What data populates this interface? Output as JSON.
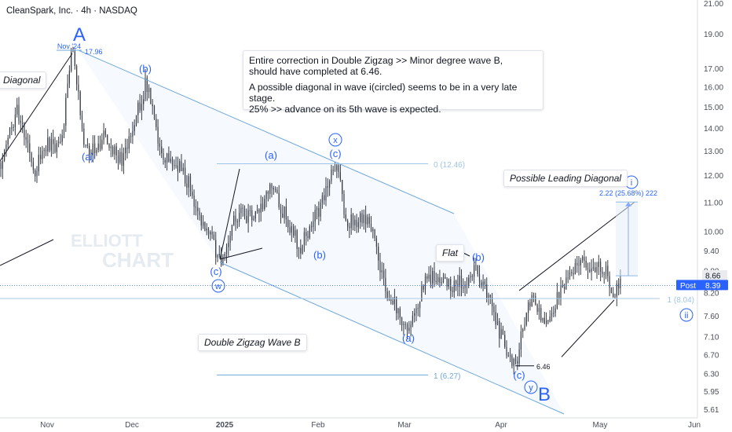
{
  "header": {
    "title": "CleanSpark, Inc. · 4h · NASDAQ"
  },
  "note": {
    "line1": "Entire correction in Double Zigzag >> Minor degree wave B,",
    "line2": "should have completed at 6.46.",
    "line3": "A possible diagonal in wave i(circled) seems to be in a very late stage.",
    "line4": " 25% >> advance on its 5th wave is expected."
  },
  "labels": {
    "diagonal": "Diagonal",
    "double_zigzag": "Double Zigzag Wave B",
    "flat": "Flat",
    "possible_leading_diagonal": "Possible Leading Diagonal",
    "watermark_line1": "ELLIOTT",
    "watermark_line2": "CHART",
    "nov24": "Nov '24",
    "high_value": "17.96",
    "low_value": "6.46",
    "measure": "2.22 (25.68%) 222",
    "fib0": "0 (12.46)",
    "fib1_lower": "1 (6.27)",
    "fib1_right": "1 (8.04)",
    "wave_A": "A",
    "wave_B": "B",
    "wave_a1": "(a)",
    "wave_b1": "(b)",
    "wave_c1": "(c)",
    "wave_w": "w",
    "wave_a2": "(a)",
    "wave_b2": "(b)",
    "wave_c2": "(c)",
    "wave_x": "x",
    "wave_a3": "(a)",
    "wave_b3": "(b)",
    "wave_c3": "(c)",
    "wave_y": "y",
    "wave_i": "i",
    "wave_ii": "ii",
    "post": "Post",
    "post_price": "8.39",
    "last_price": "8.66"
  },
  "colors": {
    "wave_blue": "#2962ff",
    "channel": "#6fa8dc",
    "fib": "#9fc5e8",
    "candle": "#363a45",
    "post_badge": "#2962ff"
  },
  "chart_data": {
    "type": "candlestick",
    "title": "CleanSpark, Inc. · 4h · NASDAQ",
    "y_axis": {
      "scale": "log",
      "range": [
        5.45,
        21.5
      ],
      "ticks": [
        "21.00",
        "19.00",
        "17.00",
        "16.00",
        "15.00",
        "14.00",
        "13.00",
        "12.00",
        "11.00",
        "10.00",
        "9.40",
        "8.80",
        "8.20",
        "7.60",
        "7.10",
        "6.70",
        "6.30",
        "5.95",
        "5.61"
      ]
    },
    "x_axis": {
      "ticks": [
        "Nov",
        "Dec",
        "2025",
        "Feb",
        "Mar",
        "Apr",
        "May",
        "Jun"
      ]
    },
    "key_points": [
      {
        "label": "A high (Nov '24)",
        "value": 17.96
      },
      {
        "label": "0 fib",
        "value": 12.46
      },
      {
        "label": "1 fib (lower)",
        "value": 6.27
      },
      {
        "label": "1 fib (right)",
        "value": 8.04
      },
      {
        "label": "B low",
        "value": 6.46
      },
      {
        "label": "Post price",
        "value": 8.39
      },
      {
        "label": "Last price",
        "value": 8.66
      }
    ],
    "measure": {
      "change": 2.22,
      "percent": 25.68,
      "bars": 222
    },
    "grid": false
  }
}
